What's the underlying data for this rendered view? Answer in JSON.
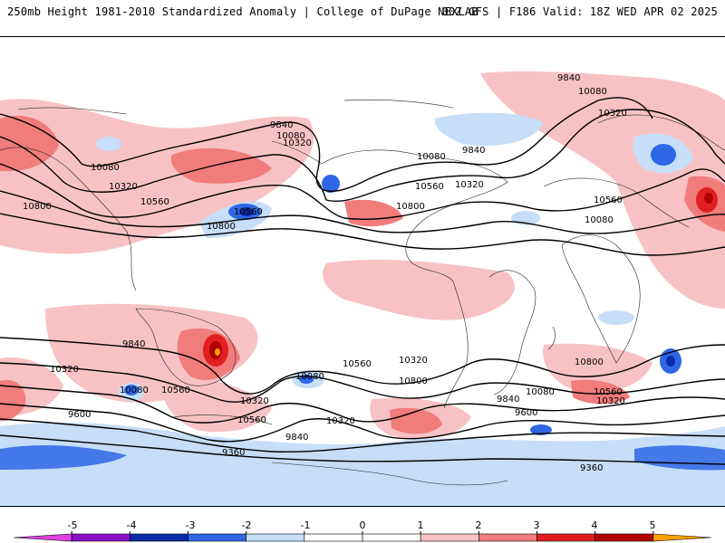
{
  "header": {
    "left_title": "250mb Height 1981-2010 Standardized Anomaly | College of DuPage NEXLAB",
    "right_title": "00Z GFS | F186 Valid: 18Z WED APR 02 2025"
  },
  "colorbar": {
    "tick_labels": [
      "-5",
      "-4",
      "-3",
      "-2",
      "-1",
      "0",
      "1",
      "2",
      "3",
      "4",
      "5"
    ],
    "colors": [
      "#e040e0",
      "#8a10c8",
      "#0a2aa8",
      "#2e66e6",
      "#c6def8",
      "#ffffff",
      "#ffffff",
      "#f8c2c4",
      "#f07c7c",
      "#e02020",
      "#b00000",
      "#ffa000"
    ]
  },
  "contours": {
    "labels": [
      "9840",
      "10080",
      "10320",
      "9840",
      "10080",
      "10320",
      "10080",
      "10320",
      "10560",
      "10800",
      "9840",
      "10080",
      "10560",
      "10320",
      "10800",
      "10560",
      "10800",
      "10560",
      "10080",
      "9840",
      "10320",
      "10080",
      "10560",
      "10320",
      "9600",
      "10080",
      "10560",
      "10320",
      "10800",
      "10560",
      "10320",
      "9840",
      "9600",
      "9360",
      "10800",
      "10560",
      "10320",
      "10080",
      "9840",
      "9600",
      "9360"
    ]
  }
}
